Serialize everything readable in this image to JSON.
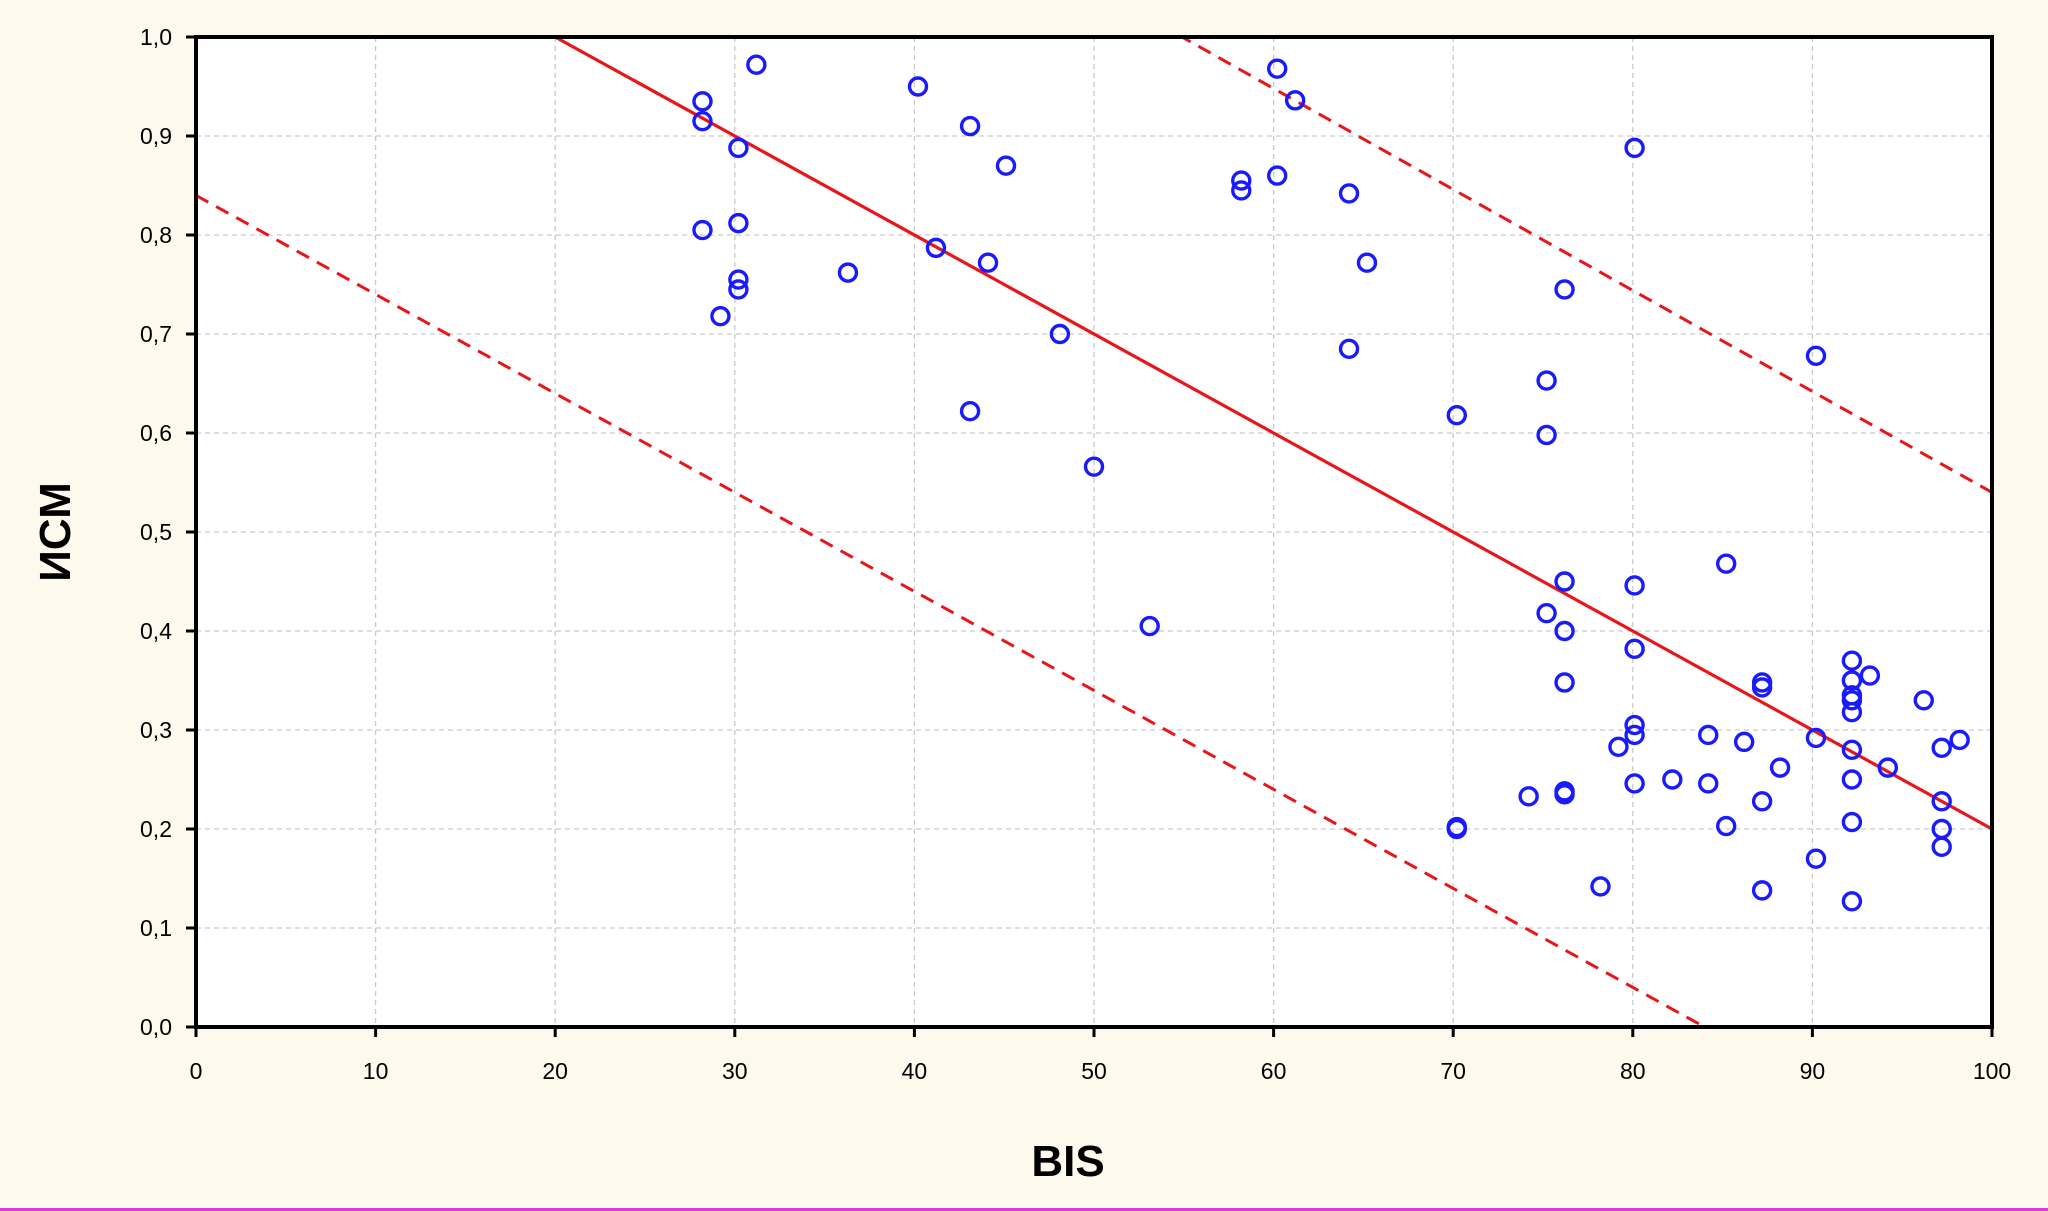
{
  "chart_data": {
    "type": "scatter",
    "title": "",
    "xlabel": "BIS",
    "ylabel": "ИСМ",
    "xlim": [
      0,
      100
    ],
    "ylim": [
      0,
      1.0
    ],
    "x_ticks": [
      0,
      10,
      20,
      30,
      40,
      50,
      60,
      70,
      80,
      90,
      100
    ],
    "x_tick_labels": [
      "0",
      "10",
      "20",
      "30",
      "40",
      "50",
      "60",
      "70",
      "80",
      "90",
      "100"
    ],
    "y_ticks": [
      0,
      0.1,
      0.2,
      0.3,
      0.4,
      0.5,
      0.6,
      0.7,
      0.8,
      0.9,
      1.0
    ],
    "y_tick_labels": [
      "0,0",
      "0,1",
      "0,2",
      "0,3",
      "0,4",
      "0,5",
      "0,6",
      "0,7",
      "0,8",
      "0,9",
      "1,0"
    ],
    "grid": true,
    "legend": "none",
    "colors": {
      "points": "#1a1aff",
      "fit": "#e8161a",
      "background": "#fdf9ec",
      "plot_area": "#ffffff"
    },
    "series": [
      {
        "type": "scatter",
        "x": [
          28.2,
          28.2,
          28.2,
          29.2,
          30.2,
          30.2,
          30.2,
          30.2,
          31.2,
          36.3,
          40.2,
          41.2,
          43.1,
          43.1,
          44.1,
          45.1,
          48.1,
          50.0,
          53.1,
          58.2,
          58.2,
          60.2,
          60.2,
          61.2,
          64.2,
          64.2,
          65.2,
          70.2,
          70.2,
          70.2,
          74.2,
          75.2,
          75.2,
          75.2,
          76.2,
          76.2,
          76.2,
          76.2,
          76.2,
          76.2,
          78.2,
          79.2,
          80.1,
          80.1,
          80.1,
          80.1,
          80.1,
          80.1,
          82.2,
          84.2,
          84.2,
          85.2,
          85.2,
          86.2,
          87.2,
          87.2,
          87.2,
          87.2,
          88.2,
          90.2,
          90.2,
          90.2,
          92.2,
          92.2,
          92.2,
          92.2,
          92.2,
          92.2,
          92.2,
          92.2,
          92.2,
          93.2,
          94.2,
          96.2,
          97.2,
          97.2,
          97.2,
          97.2,
          98.2
        ],
        "y": [
          0.935,
          0.915,
          0.805,
          0.718,
          0.888,
          0.812,
          0.755,
          0.745,
          0.972,
          0.762,
          0.95,
          0.787,
          0.91,
          0.622,
          0.772,
          0.87,
          0.7,
          0.566,
          0.405,
          0.855,
          0.845,
          0.968,
          0.86,
          0.936,
          0.842,
          0.685,
          0.772,
          0.618,
          0.202,
          0.2,
          0.233,
          0.653,
          0.598,
          0.418,
          0.745,
          0.45,
          0.4,
          0.348,
          0.238,
          0.235,
          0.142,
          0.283,
          0.888,
          0.446,
          0.382,
          0.305,
          0.295,
          0.246,
          0.25,
          0.295,
          0.246,
          0.468,
          0.203,
          0.288,
          0.348,
          0.343,
          0.228,
          0.138,
          0.262,
          0.678,
          0.292,
          0.17,
          0.37,
          0.35,
          0.335,
          0.318,
          0.33,
          0.28,
          0.25,
          0.207,
          0.127,
          0.355,
          0.262,
          0.33,
          0.282,
          0.228,
          0.2,
          0.182,
          0.29
        ]
      },
      {
        "type": "line",
        "style": "solid",
        "x": [
          0,
          100
        ],
        "y": [
          1.2,
          0.2
        ]
      },
      {
        "type": "line",
        "style": "dashed",
        "x": [
          0,
          100
        ],
        "y": [
          0.84,
          -0.16
        ]
      },
      {
        "type": "line",
        "style": "dashed",
        "x": [
          0,
          100
        ],
        "y": [
          1.56,
          0.54
        ]
      }
    ]
  }
}
